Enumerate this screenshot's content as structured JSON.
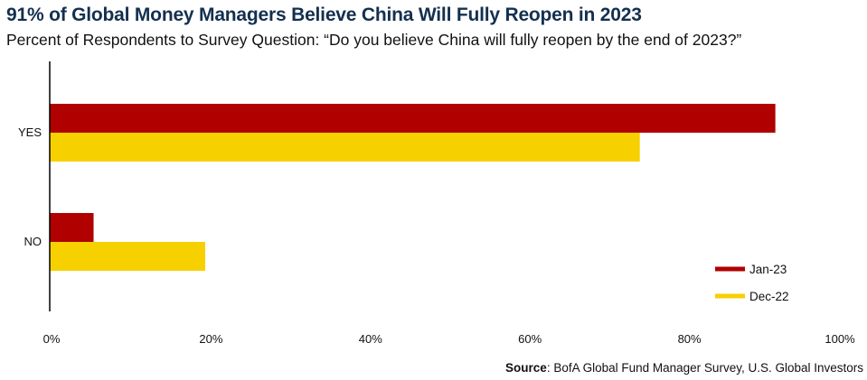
{
  "title": "91% of Global Money Managers Believe China Will Fully Reopen in 2023",
  "subtitle": "Percent of Respondents to Survey Question: “Do you believe China will fully reopen by the end of 2023?”",
  "source": {
    "label": "Source",
    "text": ": BofA Global Fund Manager Survey, U.S. Global Investors"
  },
  "chart_data": {
    "type": "bar",
    "orientation": "horizontal",
    "categories": [
      "YES",
      "NO"
    ],
    "series": [
      {
        "name": "Jan-23",
        "color": "#b00000",
        "values": [
          91,
          5.5
        ]
      },
      {
        "name": "Dec-22",
        "color": "#f7d000",
        "values": [
          74,
          19.5
        ]
      }
    ],
    "xlim": [
      0,
      100
    ],
    "xticks": [
      "0%",
      "20%",
      "40%",
      "60%",
      "80%",
      "100%"
    ],
    "legend_position": "bottom-right",
    "grid": false
  }
}
